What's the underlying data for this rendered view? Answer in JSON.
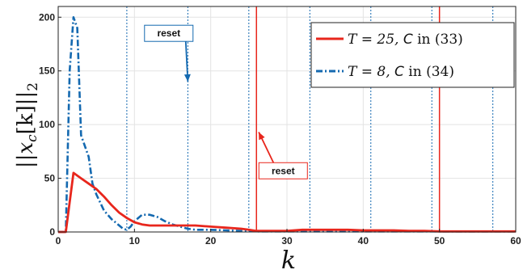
{
  "chart_data": {
    "type": "line",
    "title": "",
    "xlabel": "k",
    "ylabel": "||x_c[k]||_2",
    "ylabel_parts": {
      "open": "||",
      "var": "x",
      "sub": "c",
      "arg": "[k]",
      "close": "||",
      "norm_sub": "2"
    },
    "xlim": [
      0,
      60
    ],
    "ylim": [
      0,
      210
    ],
    "xticks": [
      0,
      10,
      20,
      30,
      40,
      50,
      60
    ],
    "yticks": [
      0,
      50,
      100,
      150,
      200
    ],
    "xtick_labels": [
      "0",
      "10",
      "20",
      "30",
      "40",
      "50",
      "60"
    ],
    "ytick_labels": [
      "0",
      "50",
      "100",
      "150",
      "200"
    ],
    "grid": true,
    "legend_position": "top-right",
    "series": [
      {
        "name": "T = 25, C in (33)",
        "color": "#e8261c",
        "style": "solid",
        "x": [
          0,
          1,
          2,
          3,
          4,
          5,
          6,
          7,
          8,
          9,
          10,
          11,
          12,
          14,
          16,
          18,
          20,
          22,
          24,
          25,
          26,
          28,
          30,
          32,
          34,
          36,
          38,
          40,
          42,
          44,
          46,
          48,
          50,
          52,
          55,
          58,
          60
        ],
        "y": [
          0,
          0,
          55,
          50,
          45,
          40,
          33,
          25,
          18,
          13,
          9,
          7,
          6,
          6,
          6,
          6,
          5,
          4,
          3,
          2,
          1,
          1,
          1,
          2,
          2,
          2,
          2,
          1.5,
          1.5,
          1.5,
          1,
          1,
          0.5,
          0.5,
          0.5,
          0.5,
          0.5
        ]
      },
      {
        "name": "T = 8, C in (34)",
        "color": "#1469b0",
        "style": "dash-dot",
        "x": [
          0,
          1,
          1.5,
          2,
          2.5,
          3,
          3.5,
          4,
          4.5,
          5,
          6,
          7,
          8,
          8.5,
          9,
          9.5,
          10,
          11,
          12,
          13,
          14,
          15,
          16,
          17,
          18,
          20,
          22,
          24,
          25,
          26,
          28,
          30,
          32,
          34,
          36,
          40,
          44,
          48,
          52,
          56,
          60
        ],
        "y": [
          0,
          0,
          150,
          200,
          190,
          90,
          80,
          70,
          45,
          35,
          20,
          12,
          6,
          3,
          2,
          5,
          10,
          16,
          16,
          14,
          10,
          7,
          5,
          3,
          2,
          2,
          1.5,
          1,
          1,
          0.5,
          0.5,
          0.5,
          0.5,
          0.5,
          0.5,
          0.5,
          0.5,
          0.5,
          0.5,
          0.5,
          0.5
        ]
      }
    ],
    "reset_lines": {
      "T25": {
        "k": [
          26,
          50
        ],
        "color": "#e8261c"
      },
      "T8": {
        "k": [
          9,
          17,
          25,
          33,
          41,
          49,
          57
        ],
        "color": "#1469b0"
      }
    },
    "annotations": [
      {
        "text": "reset",
        "color": "#1469b0",
        "box_at": [
          14.5,
          185
        ],
        "arrow_to": [
          17,
          140
        ]
      },
      {
        "text": "reset",
        "color": "#e8261c",
        "box_at": [
          29.5,
          57
        ],
        "arrow_to": [
          26.3,
          93
        ]
      }
    ]
  },
  "legend": {
    "items": [
      {
        "prefix": "T = 25, ",
        "cal": "C",
        "suffix": " in (33)",
        "color": "#e8261c"
      },
      {
        "prefix": "T = 8,  ",
        "cal": "C",
        "suffix": " in (34)",
        "color": "#1469b0"
      }
    ]
  }
}
